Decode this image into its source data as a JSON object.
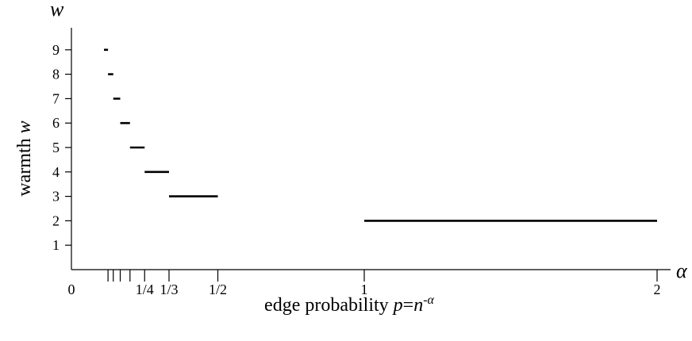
{
  "chart_data": {
    "type": "line",
    "title": "",
    "ylabel": {
      "text": "warmth ",
      "var": "w"
    },
    "xlabel": {
      "text": "edge probability ",
      "p": "p",
      "eq": "=",
      "n": "n",
      "sup": "-α"
    },
    "x_axis_symbol": "α",
    "y_axis_symbol": "w",
    "xlim": [
      0,
      2.05
    ],
    "ylim": [
      0,
      10
    ],
    "x_ticks": [
      {
        "value": 0,
        "label": "0"
      },
      {
        "value": 0.25,
        "label": "1/4"
      },
      {
        "value": 0.3333,
        "label": "1/3"
      },
      {
        "value": 0.5,
        "label": "1/2"
      },
      {
        "value": 1,
        "label": "1"
      },
      {
        "value": 2,
        "label": "2"
      }
    ],
    "x_minor_ticks": [
      0.125,
      0.1429,
      0.1667,
      0.2
    ],
    "y_ticks": [
      1,
      2,
      3,
      4,
      5,
      6,
      7,
      8,
      9
    ],
    "segments": [
      {
        "w": 9,
        "alpha_start": 0.1111,
        "alpha_end": 0.125
      },
      {
        "w": 8,
        "alpha_start": 0.125,
        "alpha_end": 0.1429
      },
      {
        "w": 7,
        "alpha_start": 0.1429,
        "alpha_end": 0.1667
      },
      {
        "w": 6,
        "alpha_start": 0.1667,
        "alpha_end": 0.2
      },
      {
        "w": 5,
        "alpha_start": 0.2,
        "alpha_end": 0.25
      },
      {
        "w": 4,
        "alpha_start": 0.25,
        "alpha_end": 0.3333
      },
      {
        "w": 3,
        "alpha_start": 0.3333,
        "alpha_end": 0.5
      },
      {
        "w": 2,
        "alpha_start": 1,
        "alpha_end": 2
      }
    ],
    "grid": false,
    "legend": "none"
  }
}
